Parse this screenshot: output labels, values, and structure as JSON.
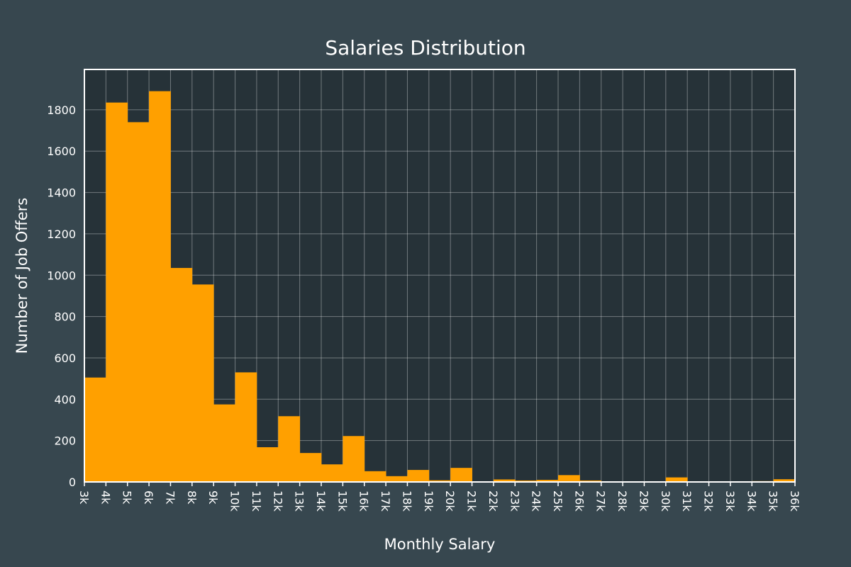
{
  "chart_data": {
    "type": "bar",
    "title": "Salaries Distribution",
    "xlabel": "Monthly Salary",
    "ylabel": "Number of Job Offers",
    "categories": [
      "3k",
      "4k",
      "5k",
      "6k",
      "7k",
      "8k",
      "9k",
      "10k",
      "11k",
      "12k",
      "13k",
      "14k",
      "15k",
      "16k",
      "17k",
      "18k",
      "19k",
      "20k",
      "21k",
      "22k",
      "23k",
      "24k",
      "25k",
      "26k",
      "27k",
      "28k",
      "29k",
      "30k",
      "31k",
      "32k",
      "33k",
      "34k",
      "35k"
    ],
    "bin_edges": [
      "3k",
      "4k",
      "5k",
      "6k",
      "7k",
      "8k",
      "9k",
      "10k",
      "11k",
      "12k",
      "13k",
      "14k",
      "15k",
      "16k",
      "17k",
      "18k",
      "19k",
      "20k",
      "21k",
      "22k",
      "23k",
      "24k",
      "25k",
      "26k",
      "27k",
      "28k",
      "29k",
      "30k",
      "31k",
      "32k",
      "33k",
      "34k",
      "35k",
      "36k"
    ],
    "values": [
      505,
      1835,
      1740,
      1890,
      1035,
      955,
      375,
      530,
      168,
      318,
      140,
      85,
      222,
      52,
      28,
      58,
      8,
      68,
      2,
      12,
      7,
      10,
      33,
      7,
      3,
      3,
      2,
      22,
      1,
      2,
      3,
      4,
      13
    ],
    "y_ticks": [
      0,
      200,
      400,
      600,
      800,
      1000,
      1200,
      1400,
      1600,
      1800
    ],
    "ylim": [
      0,
      1995
    ],
    "grid": true,
    "colors": {
      "background": "#37474f",
      "plot_background": "#263238",
      "bar": "#ffa000",
      "text": "#ffffff"
    }
  }
}
